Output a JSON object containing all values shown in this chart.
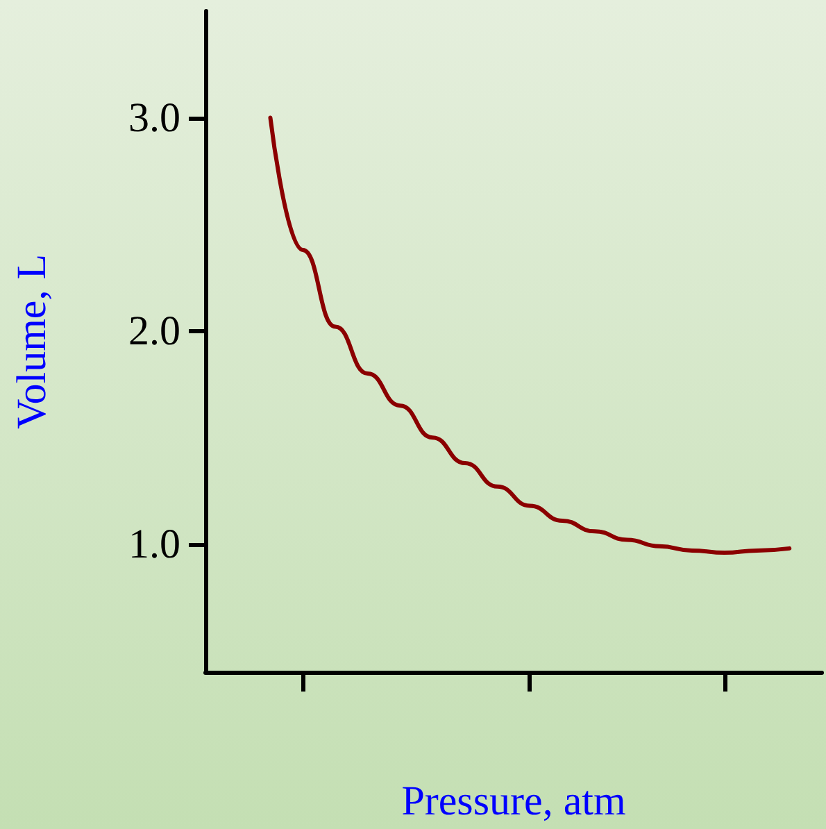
{
  "chart_data": {
    "type": "line",
    "xlabel": "Pressure, atm",
    "ylabel": "Volume, L",
    "categories": [
      null,
      null,
      null,
      null,
      null,
      null,
      null,
      null,
      null,
      null,
      null,
      null,
      null,
      null,
      null,
      null,
      null
    ],
    "series": [
      {
        "color": "#8b0000",
        "values": [
          3.0,
          2.38,
          2.02,
          1.8,
          1.65,
          1.5,
          1.38,
          1.27,
          1.18,
          1.11,
          1.06,
          1.02,
          0.99,
          0.97,
          0.96,
          0.97,
          0.98
        ]
      }
    ],
    "ylim": [
      0.4,
      3.5
    ],
    "yticks": [
      {
        "value": 1,
        "label": "1.0"
      },
      {
        "value": 2,
        "label": "2.0"
      },
      {
        "value": 3,
        "label": "3.0"
      }
    ],
    "grid": false,
    "marker": "none",
    "line_style": "solid"
  }
}
